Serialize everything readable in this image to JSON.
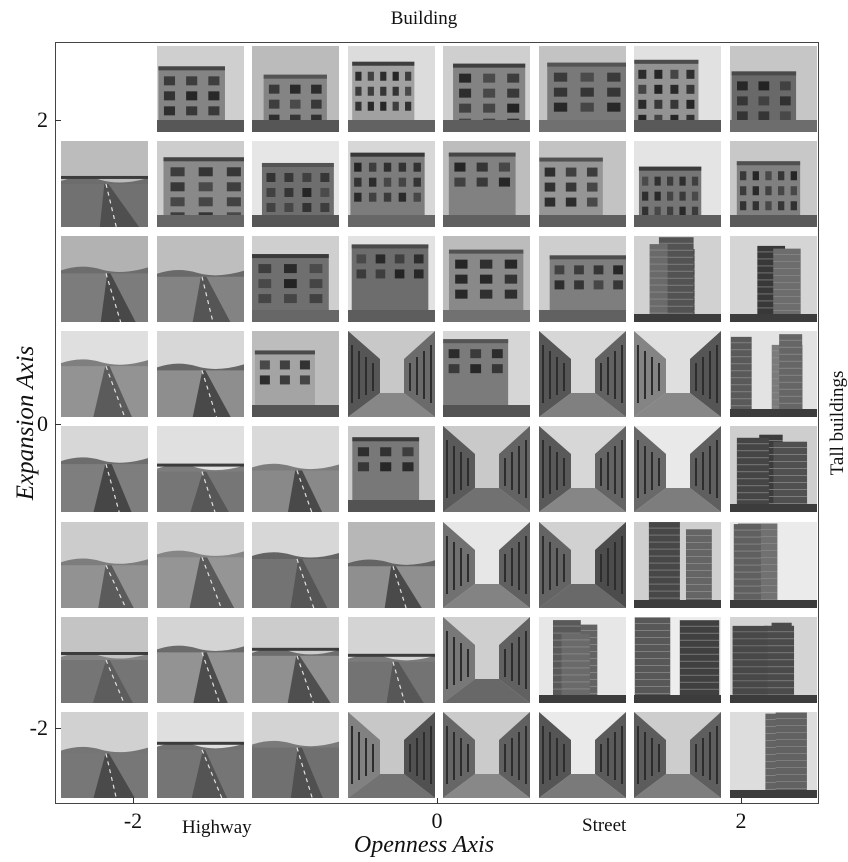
{
  "figure": {
    "top_label": "Building",
    "right_label": "Tall buildings",
    "x_axis_title": "Openness Axis",
    "y_axis_title": "Expansion Axis",
    "x_annotations": {
      "left": "Highway",
      "right": "Street"
    },
    "x_ticks": [
      "-2",
      "0",
      "2"
    ],
    "y_ticks": [
      "2",
      "0",
      "-2"
    ],
    "grid": {
      "rows": 8,
      "columns": 8,
      "empty_cells": [
        [
          0,
          0
        ]
      ]
    }
  },
  "tiles": [
    [
      "empty",
      "building",
      "building",
      "building",
      "building",
      "building",
      "building",
      "building"
    ],
    [
      "highway",
      "building",
      "building",
      "building",
      "building",
      "building",
      "building",
      "building"
    ],
    [
      "highway",
      "highway",
      "building",
      "building",
      "building",
      "building",
      "tall",
      "tall"
    ],
    [
      "highway",
      "highway",
      "building",
      "street",
      "building",
      "street",
      "street",
      "tall"
    ],
    [
      "highway",
      "highway",
      "highway",
      "building",
      "street",
      "street",
      "street",
      "tall"
    ],
    [
      "highway",
      "highway",
      "highway",
      "highway",
      "street",
      "street",
      "tall",
      "tall"
    ],
    [
      "highway",
      "highway",
      "highway",
      "highway",
      "street",
      "tall",
      "tall",
      "tall"
    ],
    [
      "highway",
      "highway",
      "highway",
      "street",
      "street",
      "street",
      "street",
      "tall"
    ]
  ]
}
